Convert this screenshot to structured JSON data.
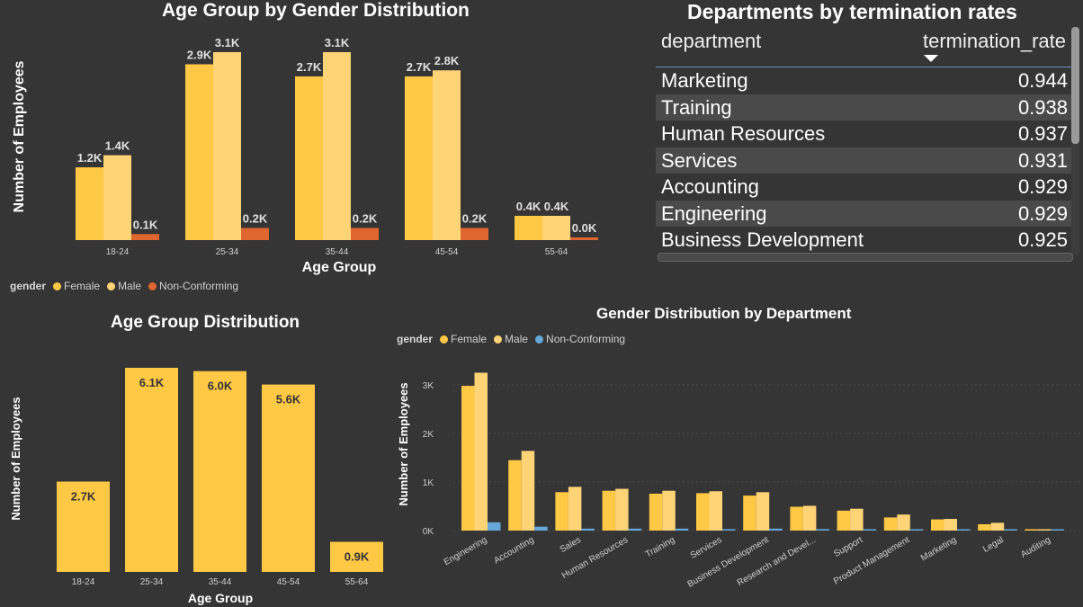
{
  "colors": {
    "female": "#FFC845",
    "male": "#FED476",
    "nonconforming_top": "#E0662F",
    "nonconforming_bottom": "#66A8D9",
    "axis_text": "#d0d0d0",
    "label_text": "#e0e0e0"
  },
  "top_chart": {
    "title": "Age Group by Gender Distribution",
    "legend_title": "gender",
    "legend": [
      "Female",
      "Male",
      "Non-Conforming"
    ]
  },
  "table": {
    "title": "Departments by termination rates",
    "columns": [
      "department",
      "termination_rate"
    ],
    "rows": [
      {
        "department": "Marketing",
        "rate": "0.944"
      },
      {
        "department": "Training",
        "rate": "0.938"
      },
      {
        "department": "Human Resources",
        "rate": "0.937"
      },
      {
        "department": "Services",
        "rate": "0.931"
      },
      {
        "department": "Accounting",
        "rate": "0.929"
      },
      {
        "department": "Engineering",
        "rate": "0.929"
      },
      {
        "department": "Business Development",
        "rate": "0.925"
      }
    ]
  },
  "bottom_left": {
    "title": "Age Group Distribution"
  },
  "bottom_right": {
    "title": "Gender Distribution by Department",
    "legend_title": "gender",
    "legend": [
      "Female",
      "Male",
      "Non-Conforming"
    ]
  },
  "chart_data": [
    {
      "type": "bar",
      "title": "Age Group by Gender Distribution",
      "xlabel": "Age Group",
      "ylabel": "Number of Employees",
      "categories": [
        "18-24",
        "25-34",
        "35-44",
        "45-54",
        "55-64"
      ],
      "series": [
        {
          "name": "Female",
          "values": [
            1.2,
            2.9,
            2.7,
            2.7,
            0.4
          ],
          "labels": [
            "1.2K",
            "2.9K",
            "2.7K",
            "2.7K",
            "0.4K"
          ]
        },
        {
          "name": "Male",
          "values": [
            1.4,
            3.1,
            3.1,
            2.8,
            0.4
          ],
          "labels": [
            "1.4K",
            "3.1K",
            "3.1K",
            "2.8K",
            "0.4K"
          ]
        },
        {
          "name": "Non-Conforming",
          "values": [
            0.1,
            0.2,
            0.2,
            0.2,
            0.04
          ],
          "labels": [
            "0.1K",
            "0.2K",
            "0.2K",
            "0.2K",
            "0.0K"
          ]
        }
      ],
      "ylim": [
        0,
        3.3
      ],
      "grid": false,
      "legend_position": "bottom-left"
    },
    {
      "type": "bar",
      "title": "Age Group Distribution",
      "xlabel": "Age Group",
      "ylabel": "Number of Employees",
      "categories": [
        "18-24",
        "25-34",
        "35-44",
        "45-54",
        "55-64"
      ],
      "values": [
        2.7,
        6.1,
        6.0,
        5.6,
        0.9
      ],
      "labels": [
        "2.7K",
        "6.1K",
        "6.0K",
        "5.6K",
        "0.9K"
      ],
      "ylim": [
        0,
        6.1
      ],
      "grid": false
    },
    {
      "type": "bar",
      "title": "Gender Distribution by Department",
      "xlabel": "",
      "ylabel": "Number of Employees",
      "categories": [
        "Engineering",
        "Accounting",
        "Sales",
        "Human Resources",
        "Training",
        "Services",
        "Business Development",
        "Research and Devel...",
        "Support",
        "Product Management",
        "Marketing",
        "Legal",
        "Auditing"
      ],
      "series": [
        {
          "name": "Female",
          "values": [
            2980,
            1450,
            790,
            820,
            760,
            770,
            720,
            490,
            410,
            270,
            230,
            130,
            25
          ]
        },
        {
          "name": "Male",
          "values": [
            3250,
            1640,
            900,
            860,
            820,
            810,
            790,
            510,
            450,
            330,
            240,
            160,
            25
          ]
        },
        {
          "name": "Non-Conforming",
          "values": [
            170,
            80,
            40,
            40,
            40,
            30,
            40,
            30,
            20,
            15,
            10,
            5,
            2
          ]
        }
      ],
      "yticks": [
        "0K",
        "1K",
        "2K",
        "3K"
      ],
      "ylim": [
        0,
        3300
      ],
      "grid": true,
      "legend_position": "top-left"
    }
  ]
}
